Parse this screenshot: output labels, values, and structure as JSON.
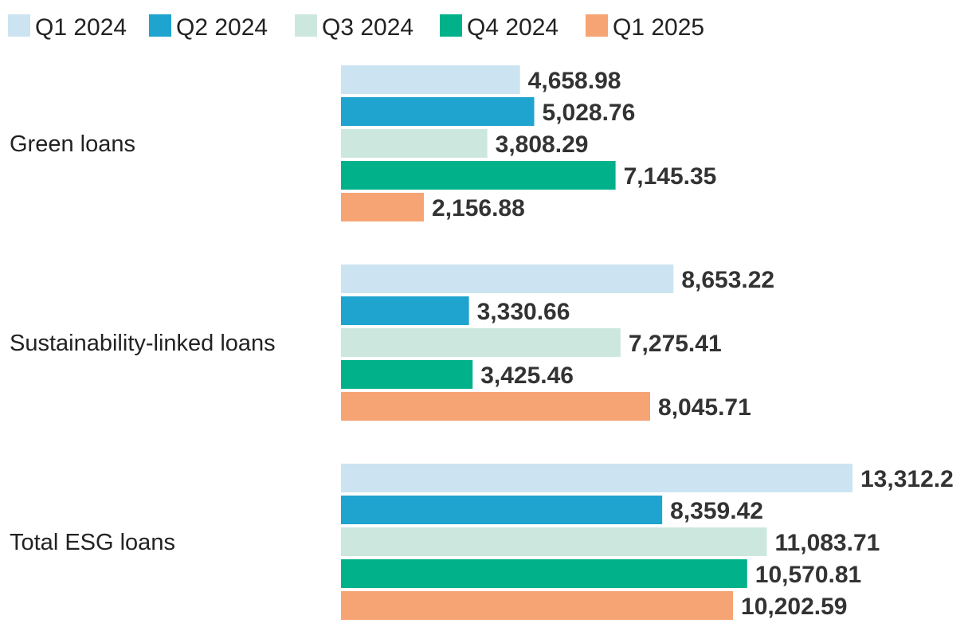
{
  "chart_data": {
    "type": "bar",
    "orientation": "horizontal",
    "categories": [
      "Green loans",
      "Sustainability-linked loans",
      "Total ESG loans"
    ],
    "series": [
      {
        "name": "Q1 2024",
        "color": "#cce4f1",
        "values": [
          4658.98,
          8653.22,
          13312.2
        ]
      },
      {
        "name": "Q2 2024",
        "color": "#1fa3cf",
        "values": [
          5028.76,
          3330.66,
          8359.42
        ]
      },
      {
        "name": "Q3 2024",
        "color": "#cce8de",
        "values": [
          3808.29,
          7275.41,
          11083.71
        ]
      },
      {
        "name": "Q4 2024",
        "color": "#00b18a",
        "values": [
          7145.35,
          3425.46,
          10570.81
        ]
      },
      {
        "name": "Q1 2025",
        "color": "#f7a474",
        "values": [
          2156.88,
          8045.71,
          10202.59
        ]
      }
    ],
    "value_labels": [
      [
        "4,658.98",
        "8,653.22",
        "13,312.2"
      ],
      [
        "5,028.76",
        "3,330.66",
        "8,359.42"
      ],
      [
        "3,808.29",
        "7,275.41",
        "11,083.71"
      ],
      [
        "7,145.35",
        "3,425.46",
        "10,570.81"
      ],
      [
        "2,156.88",
        "8,045.71",
        "10,202.59"
      ]
    ],
    "xlim": [
      0,
      13312.2
    ],
    "legend": "top-left",
    "grid": false
  }
}
